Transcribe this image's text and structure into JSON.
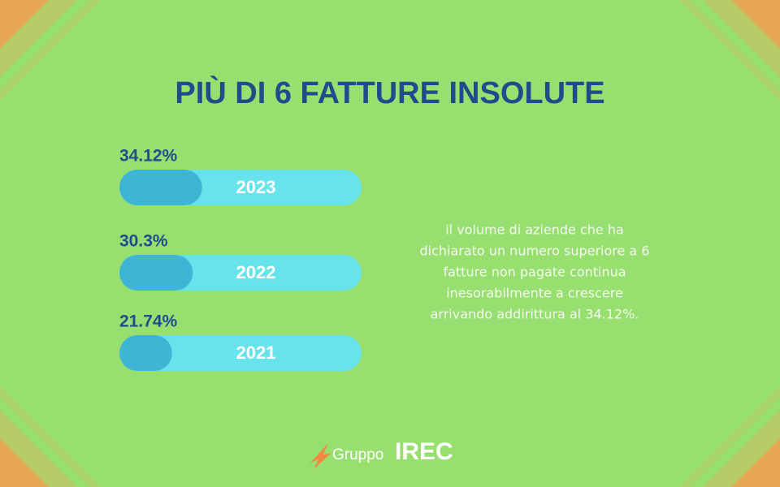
{
  "chart_data": {
    "type": "bar",
    "orientation": "horizontal",
    "title": "PIÙ DI 6 FATTURE INSOLUTE",
    "categories": [
      "2023",
      "2022",
      "2021"
    ],
    "values": [
      34.12,
      30.3,
      21.74
    ],
    "value_labels": [
      "34.12%",
      "30.3%",
      "21.74%"
    ],
    "color": "#3fb5d6",
    "track_color": "#67e3ec",
    "xlim": [
      0,
      100
    ]
  },
  "description": [
    "il volume di aziende che ha",
    "dichiarato un numero superiore a 6",
    "fatture non pagate continua",
    "inesorabilmente a crescere",
    "arrivando addirittura al 34.12%."
  ],
  "logo": {
    "prefix": "Gruppo",
    "name": "IREC"
  }
}
